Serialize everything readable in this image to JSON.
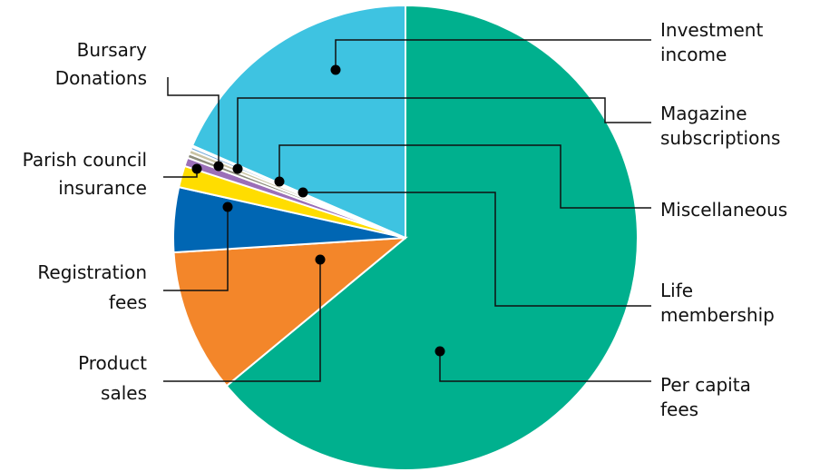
{
  "chart_data": {
    "type": "pie",
    "title": "",
    "start_angle_deg": 0,
    "direction": "clockwise",
    "legend": "none",
    "slices": [
      {
        "key": "per_capita_fees",
        "label_lines": [
          "Per capita",
          "fees"
        ],
        "value": 64.0,
        "color": "#00B08E"
      },
      {
        "key": "product_sales",
        "label_lines": [
          "Product",
          "sales"
        ],
        "value": 10.0,
        "color": "#F3862A"
      },
      {
        "key": "registration_fees",
        "label_lines": [
          "Registration",
          "fees"
        ],
        "value": 4.5,
        "color": "#0066B3"
      },
      {
        "key": "parish_council_insurance",
        "label_lines": [
          "Parish council",
          "insurance"
        ],
        "value": 1.5,
        "color": "#FFDD00"
      },
      {
        "key": "bursary",
        "label_lines": [
          "Bursary"
        ],
        "value": 0.6,
        "color": "#9B6FB8"
      },
      {
        "key": "donations",
        "label_lines": [
          "Donations"
        ],
        "value": 0.3,
        "color": "#8C8C7A"
      },
      {
        "key": "magazine_subscriptions",
        "label_lines": [
          "Magazine",
          "subscriptions"
        ],
        "value": 0.3,
        "color": "#C9C3A3"
      },
      {
        "key": "miscellaneous",
        "label_lines": [
          "Miscellaneous"
        ],
        "value": 0.2,
        "color": "#6FA8D8"
      },
      {
        "key": "life_membership",
        "label_lines": [
          "Life",
          "membership"
        ],
        "value": 0.1,
        "color": "#A9D4EE"
      },
      {
        "key": "investment_income",
        "label_lines": [
          "Investment",
          "income"
        ],
        "value": 18.5,
        "color": "#3EC3E1"
      }
    ]
  }
}
